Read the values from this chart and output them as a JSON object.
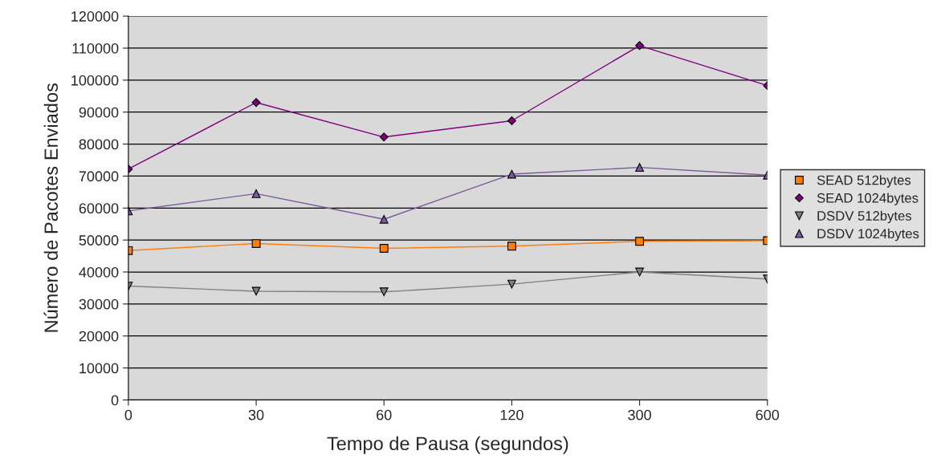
{
  "chart_data": {
    "type": "line",
    "xlabel": "Tempo de Pausa (segundos)",
    "ylabel": "Número de Pacotes Enviados",
    "categories": [
      "0",
      "30",
      "60",
      "120",
      "300",
      "600"
    ],
    "ylim": [
      0,
      120000
    ],
    "yticks": [
      0,
      10000,
      20000,
      30000,
      40000,
      50000,
      60000,
      70000,
      80000,
      90000,
      100000,
      110000,
      120000
    ],
    "grid": "y",
    "legend": "right",
    "series": [
      {
        "name": "SEAD 512bytes",
        "color": "#ff7f0e",
        "marker": "square",
        "values": [
          46700,
          48900,
          47400,
          48100,
          49600,
          49800
        ]
      },
      {
        "name": "SEAD 1024bytes",
        "color": "#800080",
        "marker": "diamond",
        "values": [
          72200,
          93000,
          82200,
          87300,
          110800,
          98300
        ]
      },
      {
        "name": "DSDV 512bytes",
        "color": "#808080",
        "marker": "triangle_down",
        "values": [
          35600,
          34000,
          33800,
          36200,
          40000,
          37800
        ]
      },
      {
        "name": "DSDV 1024bytes",
        "color": "#7b5a9e",
        "marker": "triangle",
        "values": [
          59100,
          64500,
          56500,
          70600,
          72700,
          70300
        ]
      }
    ]
  }
}
